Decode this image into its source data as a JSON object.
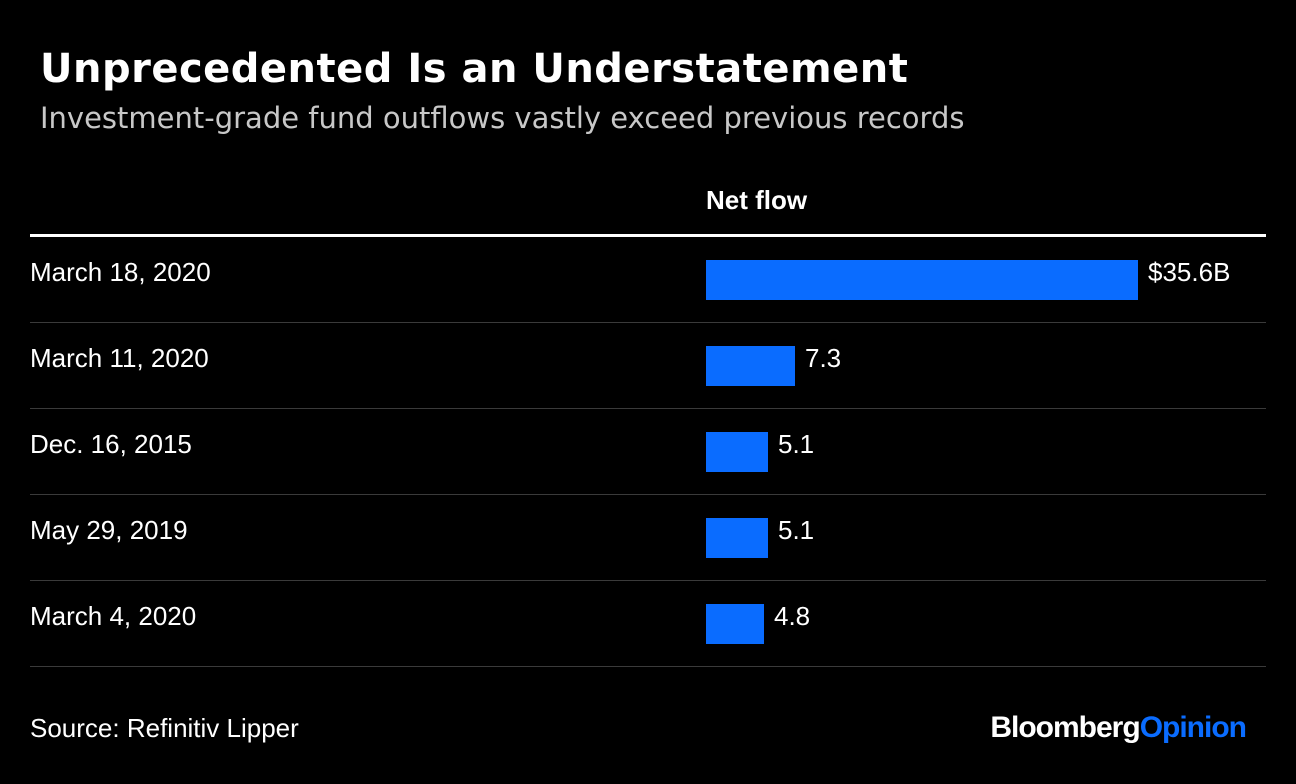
{
  "title": "Unprecedented Is an Understatement",
  "subtitle": "Investment-grade fund outflows vastly exceed previous records",
  "column_header": "Net flow",
  "source": "Source: Refinitiv Lipper",
  "brand": {
    "part1": "Bloomberg",
    "part2": "Opinion"
  },
  "colors": {
    "background": "#000000",
    "bar": "#0a6cff",
    "brand_accent": "#0a6cff"
  },
  "chart_data": {
    "type": "bar",
    "orientation": "horizontal",
    "title": "Unprecedented Is an Understatement",
    "subtitle": "Investment-grade fund outflows vastly exceed previous records",
    "column_header": "Net flow",
    "categories": [
      "March 18, 2020",
      "March 11, 2020",
      "Dec. 16, 2015",
      "May 29, 2019",
      "March 4, 2020"
    ],
    "values": [
      35.6,
      7.3,
      5.1,
      5.1,
      4.8
    ],
    "value_labels": [
      "$35.6B",
      "7.3",
      "5.1",
      "5.1",
      "4.8"
    ],
    "unit": "$B",
    "xlim": [
      0,
      35.6
    ],
    "grid": false,
    "legend": "none"
  }
}
